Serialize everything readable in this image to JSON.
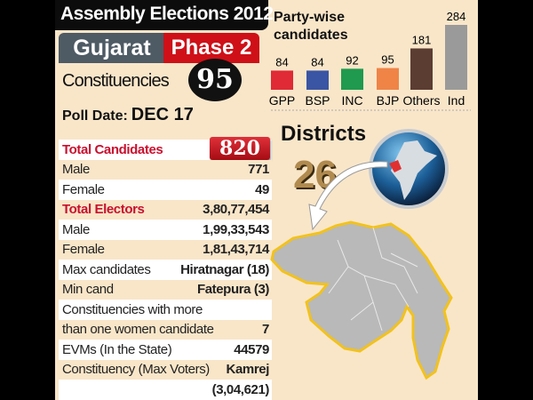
{
  "header": {
    "title": "Assembly Elections 2012",
    "state": "Gujarat",
    "phase": "Phase 2",
    "constituencies_label": "Constituencies",
    "constituencies_count": "95",
    "poll_date_label": "Poll Date:",
    "poll_date": "DEC 17"
  },
  "stats": [
    {
      "label": "Total Candidates",
      "value": "820",
      "highlight": true,
      "badge": true
    },
    {
      "label": "Male",
      "value": "771"
    },
    {
      "label": "Female",
      "value": "49"
    },
    {
      "label": "Total Electors",
      "value": "3,80,77,454",
      "highlight": true
    },
    {
      "label": "Male",
      "value": "1,99,33,543"
    },
    {
      "label": "Female",
      "value": "1,81,43,714"
    },
    {
      "label": "Max candidates",
      "value": "Hiratnagar (18)"
    },
    {
      "label": "Min cand",
      "value": "Fatepura (3)"
    },
    {
      "label": "Constituencies with more",
      "value": ""
    },
    {
      "label": "than one women candidate",
      "value": "7"
    },
    {
      "label": "EVMs (In the State)",
      "value": "44579"
    },
    {
      "label": "Constituency (Max Voters)",
      "value": "Kamrej"
    },
    {
      "label": "",
      "value": "(3,04,621)"
    }
  ],
  "chart_data": {
    "type": "bar",
    "title": "Party-wise candidates",
    "categories": [
      "GPP",
      "BSP",
      "INC",
      "BJP",
      "Others",
      "Ind"
    ],
    "values": [
      84,
      84,
      92,
      95,
      181,
      284
    ],
    "colors": [
      "#e02a36",
      "#3a55a4",
      "#1f9a4e",
      "#ef8446",
      "#5c3d32",
      "#9a9a9a"
    ]
  },
  "districts": {
    "label": "Districts",
    "count": "26",
    "highlight_color": "#e03030",
    "map_color": "#b9b9b9",
    "border_color": "#f2c21c"
  }
}
